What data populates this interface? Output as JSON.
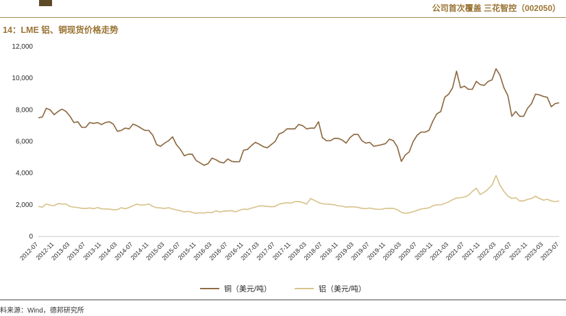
{
  "page": {
    "header_right": "公司首次覆盖 三花智控（002050）",
    "figure_title": "14：LME 铝、铜现货价格走势",
    "source_note": "料来源：Wind，德邦研究所",
    "accent_color": "#9A7433"
  },
  "chart_data": {
    "type": "line",
    "title": "LME 铝、铜现货价格走势",
    "xlabel": "",
    "ylabel": "",
    "ylim": [
      0,
      12000
    ],
    "y_ticks": [
      0,
      2000,
      4000,
      6000,
      8000,
      10000,
      12000
    ],
    "grid": false,
    "legend_position": "bottom-center",
    "x_start": "2012-07",
    "x_end": "2023-07",
    "x_tick_every": 4,
    "x_tick_labels": [
      "2012-07",
      "2012-11",
      "2013-03",
      "2013-07",
      "2013-11",
      "2014-03",
      "2014-07",
      "2014-11",
      "2015-03",
      "2015-07",
      "2015-11",
      "2016-03",
      "2016-07",
      "2016-11",
      "2017-03",
      "2017-07",
      "2017-11",
      "2018-03",
      "2018-07",
      "2018-11",
      "2019-03",
      "2019-07",
      "2019-11",
      "2020-03",
      "2020-07",
      "2020-11",
      "2021-03",
      "2021-07",
      "2021-11",
      "2022-03",
      "2022-07",
      "2022-11",
      "2023-03",
      "2023-07"
    ],
    "series": [
      {
        "name": "铜（美元/吨）",
        "color": "#8F6B44",
        "values": [
          7500,
          7550,
          8100,
          8000,
          7700,
          7900,
          8050,
          7900,
          7600,
          7200,
          7250,
          6900,
          6900,
          7200,
          7150,
          7200,
          7070,
          7200,
          7250,
          7100,
          6650,
          6700,
          6850,
          6800,
          7100,
          7000,
          6850,
          6700,
          6700,
          6400,
          5800,
          5700,
          5900,
          6050,
          6300,
          5800,
          5500,
          5100,
          5200,
          5200,
          4800,
          4650,
          4500,
          4600,
          4950,
          4850,
          4700,
          4650,
          4900,
          4750,
          4720,
          4730,
          5450,
          5500,
          5750,
          5950,
          5830,
          5680,
          5600,
          5800,
          6000,
          6480,
          6580,
          6800,
          6800,
          6800,
          7080,
          7000,
          6800,
          6850,
          6850,
          7250,
          6250,
          6050,
          6050,
          6200,
          6200,
          6100,
          5900,
          6250,
          6450,
          6450,
          6050,
          5900,
          5950,
          5700,
          5750,
          5800,
          5870,
          6150,
          6050,
          5650,
          4750,
          5150,
          5350,
          6000,
          6400,
          6600,
          6600,
          6700,
          7300,
          7750,
          7900,
          8800,
          9000,
          9400,
          10450,
          9400,
          9500,
          9300,
          9300,
          9800,
          9600,
          9550,
          9800,
          9900,
          10600,
          10200,
          9400,
          8900,
          7600,
          7900,
          7600,
          7600,
          8100,
          8400,
          9000,
          8950,
          8850,
          8800,
          8200,
          8400,
          8450
        ]
      },
      {
        "name": "铝（美元/吨）",
        "color": "#D9C48E",
        "values": [
          1900,
          1850,
          2050,
          1980,
          1950,
          2080,
          2050,
          2050,
          1900,
          1850,
          1830,
          1780,
          1770,
          1800,
          1760,
          1830,
          1750,
          1740,
          1730,
          1690,
          1700,
          1820,
          1750,
          1830,
          1950,
          2050,
          1980,
          2000,
          2050,
          1900,
          1820,
          1800,
          1770,
          1820,
          1740,
          1680,
          1630,
          1550,
          1590,
          1520,
          1470,
          1500,
          1480,
          1530,
          1510,
          1620,
          1550,
          1600,
          1620,
          1630,
          1560,
          1660,
          1730,
          1710,
          1790,
          1860,
          1930,
          1930,
          1900,
          1880,
          1900,
          2040,
          2100,
          2130,
          2100,
          2200,
          2210,
          2150,
          2050,
          2400,
          2280,
          2150,
          2070,
          2050,
          2030,
          2000,
          1940,
          1920,
          1850,
          1880,
          1870,
          1840,
          1780,
          1760,
          1800,
          1740,
          1720,
          1720,
          1770,
          1780,
          1770,
          1690,
          1530,
          1460,
          1500,
          1570,
          1650,
          1740,
          1770,
          1810,
          1940,
          2000,
          2000,
          2080,
          2190,
          2320,
          2440,
          2440,
          2500,
          2600,
          2850,
          3050,
          2650,
          2800,
          3000,
          3250,
          3850,
          3250,
          2850,
          2550,
          2400,
          2450,
          2250,
          2250,
          2350,
          2400,
          2550,
          2400,
          2300,
          2350,
          2250,
          2200,
          2250
        ]
      }
    ]
  }
}
